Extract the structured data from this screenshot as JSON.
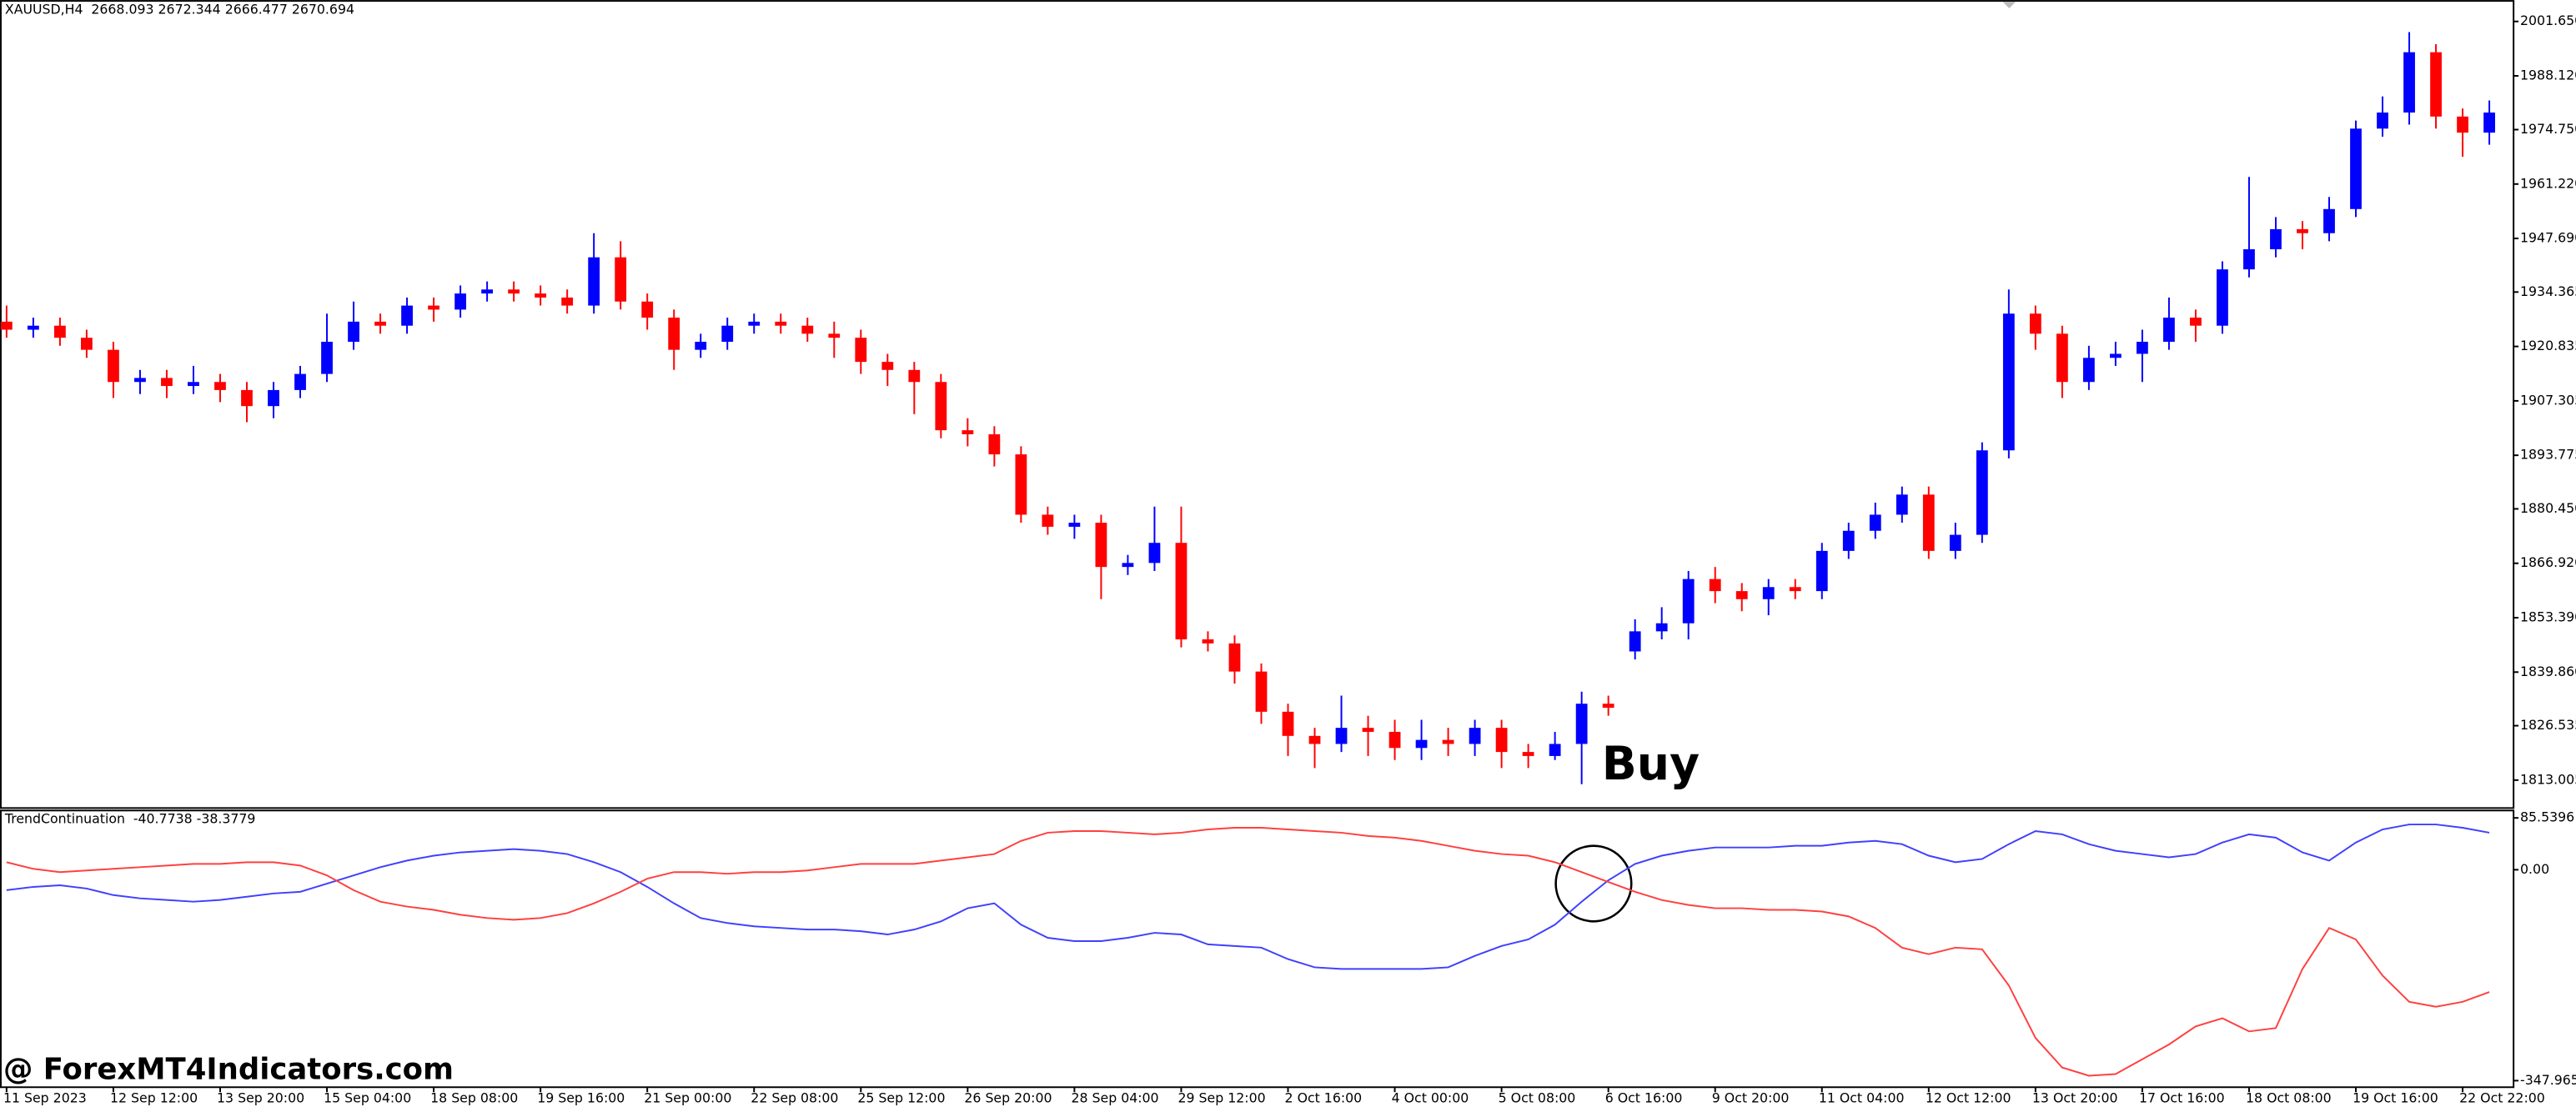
{
  "chart_data": [
    {
      "type": "candlestick",
      "title": "XAUUSD,H4",
      "subtitle": "2668.093 2672.344 2666.477 2670.694",
      "annotation": "Buy",
      "up_color": "#0000ff",
      "down_color": "#ff0000",
      "open": [
        1927,
        1925,
        1926,
        1923,
        1920,
        1912,
        1913,
        1911,
        1912,
        1910,
        1906,
        1910,
        1914,
        1922,
        1927,
        1926,
        1931,
        1930,
        1934,
        1935,
        1934,
        1933,
        1931,
        1943,
        1932,
        1928,
        1920,
        1922,
        1926,
        1927,
        1926,
        1924,
        1923,
        1917,
        1915,
        1912,
        1900,
        1899,
        1894,
        1879,
        1876,
        1877,
        1866,
        1867,
        1872,
        1848,
        1847,
        1840,
        1830,
        1824,
        1822,
        1826,
        1825,
        1821,
        1823,
        1822,
        1826,
        1820,
        1819,
        1822,
        1832,
        1845,
        1850,
        1852,
        1863,
        1860,
        1858,
        1861,
        1860,
        1870,
        1875,
        1879,
        1884,
        1870,
        1874,
        1895,
        1929,
        1924,
        1912,
        1918,
        1919,
        1922,
        1928,
        1926,
        1940,
        1945,
        1950,
        1949,
        1955,
        1975,
        1979,
        1994,
        1978,
        1974
      ],
      "high": [
        1931,
        1928,
        1928,
        1925,
        1922,
        1915,
        1915,
        1916,
        1914,
        1912,
        1912,
        1916,
        1929,
        1932,
        1929,
        1933,
        1933,
        1936,
        1937,
        1937,
        1936,
        1935,
        1949,
        1947,
        1934,
        1930,
        1924,
        1928,
        1929,
        1929,
        1928,
        1927,
        1925,
        1919,
        1917,
        1914,
        1903,
        1901,
        1896,
        1881,
        1879,
        1879,
        1869,
        1881,
        1881,
        1850,
        1849,
        1842,
        1832,
        1826,
        1834,
        1829,
        1828,
        1828,
        1826,
        1828,
        1828,
        1822,
        1825,
        1835,
        1834,
        1853,
        1856,
        1865,
        1866,
        1862,
        1863,
        1863,
        1872,
        1877,
        1882,
        1886,
        1886,
        1877,
        1897,
        1935,
        1931,
        1926,
        1921,
        1922,
        1925,
        1933,
        1930,
        1942,
        1963,
        1953,
        1952,
        1958,
        1977,
        1983,
        1999,
        1996,
        1980,
        1982
      ],
      "low": [
        1923,
        1923,
        1921,
        1918,
        1908,
        1909,
        1908,
        1909,
        1907,
        1902,
        1903,
        1908,
        1912,
        1920,
        1924,
        1924,
        1927,
        1928,
        1932,
        1932,
        1931,
        1929,
        1929,
        1930,
        1925,
        1915,
        1918,
        1920,
        1924,
        1924,
        1922,
        1918,
        1914,
        1911,
        1904,
        1898,
        1896,
        1891,
        1877,
        1874,
        1873,
        1858,
        1864,
        1865,
        1846,
        1845,
        1837,
        1827,
        1819,
        1816,
        1820,
        1819,
        1818,
        1818,
        1819,
        1819,
        1816,
        1816,
        1818,
        1812,
        1829,
        1843,
        1848,
        1848,
        1857,
        1855,
        1854,
        1858,
        1858,
        1868,
        1873,
        1877,
        1868,
        1868,
        1872,
        1893,
        1920,
        1908,
        1910,
        1916,
        1912,
        1920,
        1922,
        1924,
        1938,
        1943,
        1945,
        1947,
        1953,
        1973,
        1976,
        1975,
        1968,
        1971
      ],
      "close": [
        1925,
        1926,
        1923,
        1920,
        1912,
        1913,
        1911,
        1912,
        1910,
        1906,
        1910,
        1914,
        1922,
        1927,
        1926,
        1931,
        1930,
        1934,
        1935,
        1934,
        1933,
        1931,
        1943,
        1932,
        1928,
        1920,
        1922,
        1926,
        1927,
        1926,
        1924,
        1923,
        1917,
        1915,
        1912,
        1900,
        1899,
        1894,
        1879,
        1876,
        1877,
        1866,
        1867,
        1872,
        1848,
        1847,
        1840,
        1830,
        1824,
        1822,
        1826,
        1825,
        1821,
        1823,
        1822,
        1826,
        1820,
        1819,
        1822,
        1832,
        1831,
        1850,
        1852,
        1863,
        1860,
        1858,
        1861,
        1860,
        1870,
        1875,
        1879,
        1884,
        1870,
        1874,
        1895,
        1929,
        1924,
        1912,
        1918,
        1919,
        1922,
        1928,
        1926,
        1940,
        1945,
        1950,
        1949,
        1955,
        1975,
        1979,
        1994,
        1978,
        1974,
        1979
      ],
      "ylim": [
        1806.06,
        2006.96
      ],
      "yticks": [
        {
          "value": 2001.65,
          "label": "2001.650"
        },
        {
          "value": 1988.12,
          "label": "1988.120"
        },
        {
          "value": 1974.75,
          "label": "1974.750"
        },
        {
          "value": 1961.22,
          "label": "1961.220"
        },
        {
          "value": 1947.69,
          "label": "1947.690"
        },
        1934.365,
        1920.835,
        1907.305,
        1893.775,
        {
          "value": 1880.45,
          "label": "1880.450"
        },
        {
          "value": 1866.92,
          "label": "1866.920"
        },
        {
          "value": 1853.39,
          "label": "1853.390"
        },
        {
          "value": 1839.86,
          "label": "1839.860"
        },
        1826.535,
        1813.005
      ]
    },
    {
      "type": "line",
      "title": "TrendContinuation",
      "subtitle": "-40.7738 -38.3779",
      "watermark": "@ ForexMT4Indicators.com",
      "categories": [
        "11 Sep 2023",
        null,
        null,
        null,
        "12 Sep 12:00",
        null,
        null,
        null,
        "13 Sep 20:00",
        null,
        null,
        null,
        "15 Sep 04:00",
        null,
        null,
        null,
        "18 Sep 08:00",
        null,
        null,
        null,
        "19 Sep 16:00",
        null,
        null,
        null,
        "21 Sep 00:00",
        null,
        null,
        null,
        "22 Sep 08:00",
        null,
        null,
        null,
        "25 Sep 12:00",
        null,
        null,
        null,
        "26 Sep 20:00",
        null,
        null,
        null,
        "28 Sep 04:00",
        null,
        null,
        null,
        "29 Sep 12:00",
        null,
        null,
        null,
        "2 Oct 16:00",
        null,
        null,
        null,
        "4 Oct 00:00",
        null,
        null,
        null,
        "5 Oct 08:00",
        null,
        null,
        null,
        "6 Oct 16:00",
        null,
        null,
        null,
        "9 Oct 20:00",
        null,
        null,
        null,
        "11 Oct 04:00",
        null,
        null,
        null,
        "12 Oct 12:00",
        null,
        null,
        null,
        "13 Oct 20:00",
        null,
        null,
        null,
        "17 Oct 16:00",
        null,
        null,
        null,
        "18 Oct 08:00",
        null,
        null,
        null,
        "19 Oct 16:00",
        null,
        null,
        null,
        "22 Oct 22:00",
        null
      ],
      "series": [
        {
          "color": "#4040ff",
          "values": [
            -33.7,
            -28.3,
            -25.6,
            -31.0,
            -41.8,
            -47.2,
            -49.9,
            -52.7,
            -49.9,
            -44.5,
            -39.1,
            -36.4,
            -22.9,
            -9.3,
            4.2,
            15.1,
            23.2,
            28.6,
            31.3,
            34.0,
            31.3,
            25.9,
            12.4,
            -3.9,
            -28.3,
            -55.4,
            -79.7,
            -87.9,
            -93.3,
            -96.0,
            -98.7,
            -98.7,
            -101.4,
            -106.8,
            -98.7,
            -85.2,
            -63.5,
            -55.4,
            -90.6,
            -112.3,
            -117.7,
            -117.7,
            -112.3,
            -104.1,
            -106.8,
            -123.1,
            -125.8,
            -128.5,
            -147.5,
            -161.0,
            -163.7,
            -163.7,
            -163.7,
            -163.7,
            -161.0,
            -142.1,
            -125.8,
            -115.0,
            -90.6,
            -52.7,
            -17.4,
            9.6,
            23.2,
            31.3,
            36.7,
            36.7,
            36.7,
            39.5,
            39.5,
            44.9,
            47.6,
            42.2,
            23.2,
            12.4,
            17.8,
            42.2,
            63.8,
            58.4,
            42.2,
            31.3,
            25.9,
            20.5,
            25.9,
            44.9,
            58.4,
            53.0,
            28.6,
            15.1,
            44.9,
            66.5,
            74.7,
            74.7,
            69.3,
            61.1
          ]
        },
        {
          "color": "#ff4040",
          "values": [
            12.4,
            1.5,
            -3.9,
            -1.2,
            1.5,
            4.2,
            6.9,
            9.6,
            9.6,
            12.4,
            12.4,
            6.9,
            -9.3,
            -33.7,
            -52.7,
            -60.8,
            -66.2,
            -74.3,
            -79.7,
            -82.5,
            -79.7,
            -71.6,
            -55.4,
            -36.4,
            -14.7,
            -3.9,
            -3.9,
            -6.6,
            -3.9,
            -3.9,
            -1.2,
            4.2,
            9.6,
            9.6,
            9.6,
            15.1,
            20.5,
            25.9,
            47.6,
            61.1,
            63.8,
            63.8,
            61.1,
            58.4,
            61.1,
            66.5,
            69.3,
            69.3,
            66.5,
            63.8,
            61.1,
            55.7,
            53.0,
            47.6,
            39.5,
            31.3,
            25.9,
            23.2,
            12.4,
            -3.9,
            -20.2,
            -36.4,
            -49.9,
            -58.1,
            -63.5,
            -63.5,
            -66.2,
            -66.2,
            -68.9,
            -77.0,
            -96.0,
            -128.5,
            -139.3,
            -128.5,
            -131.2,
            -190.8,
            -277.5,
            -326.3,
            -339.8,
            -337.1,
            -312.7,
            -288.3,
            -258.5,
            -245.0,
            -266.7,
            -261.3,
            -163.7,
            -96.0,
            -115.0,
            -174.6,
            -217.9,
            -226.0,
            -217.9,
            -201.7
          ]
        }
      ],
      "ylim": [
        -358.8,
        99.1
      ],
      "yticks": [
        85.5396,
        {
          "value": 0,
          "label": "0.00"
        },
        -347.9653
      ]
    }
  ]
}
